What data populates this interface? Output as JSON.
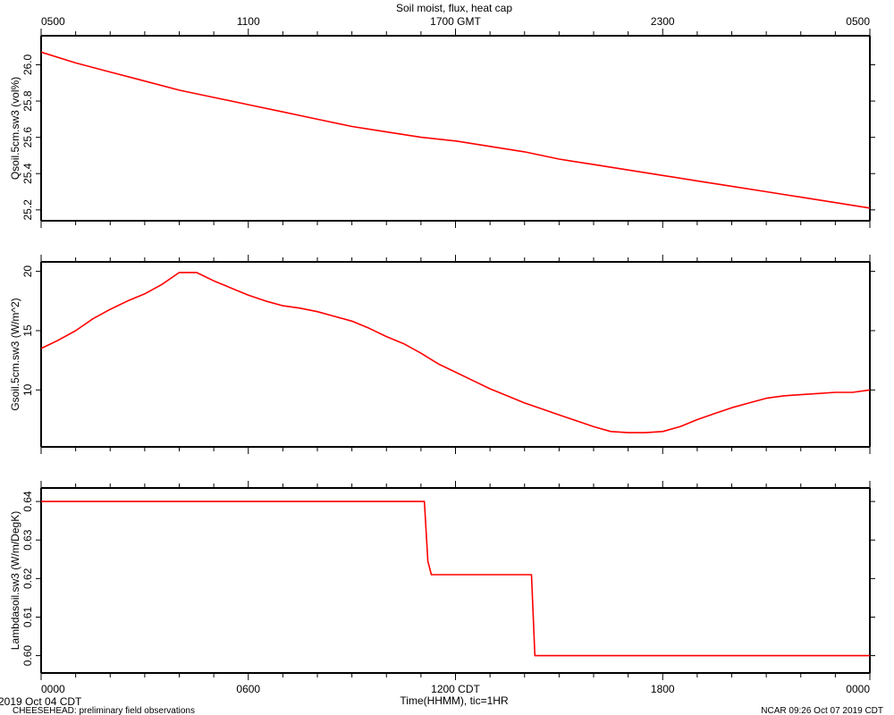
{
  "chart_data": {
    "title": "Soil moist, flux, heat cap",
    "top_axis_labels": [
      "0500",
      "1100",
      "1700 GMT",
      "2300",
      "0500"
    ],
    "bottom_axis_labels": [
      "0000",
      "0600",
      "1200 CDT",
      "1800",
      "0000"
    ],
    "xlabel": "Time(HHMM), tic=1HR",
    "date_label": "2019 Oct 04 CDT",
    "footer_left": "CHEESEHEAD: preliminary field observations",
    "footer_right": "NCAR 09:26 Oct 07 2019 CDT",
    "x_range_hours": [
      0,
      24
    ],
    "line_color": "#ff0000",
    "panels": [
      {
        "type": "line",
        "ylabel": "Qsoil.5cm.sw3 (vol%)",
        "ylim": [
          25.14,
          26.16
        ],
        "ytick_values": [
          25.2,
          25.4,
          25.6,
          25.8,
          26.0
        ],
        "ytick_labels": [
          "25.2",
          "25.4",
          "25.6",
          "25.8",
          "26.0"
        ],
        "series": [
          {
            "x": [
              0,
              1,
              2,
              3,
              4,
              5,
              6,
              7,
              8,
              9,
              10,
              11,
              12,
              13,
              14,
              15,
              16,
              17,
              18,
              19,
              20,
              21,
              22,
              23,
              24
            ],
            "y": [
              26.07,
              26.01,
              25.96,
              25.91,
              25.86,
              25.82,
              25.78,
              25.74,
              25.7,
              25.66,
              25.63,
              25.6,
              25.58,
              25.55,
              25.52,
              25.48,
              25.45,
              25.42,
              25.39,
              25.36,
              25.33,
              25.3,
              25.27,
              25.24,
              25.21
            ]
          }
        ]
      },
      {
        "type": "line",
        "ylabel": "Gsoil.5cm.sw3 (W/m^2)",
        "ylim": [
          5.2,
          20.8
        ],
        "ytick_values": [
          10,
          15,
          20
        ],
        "ytick_labels": [
          "10",
          "15",
          "20"
        ],
        "series": [
          {
            "x": [
              0,
              0.5,
              1,
              1.5,
              2,
              2.5,
              3,
              3.5,
              4,
              4.5,
              5,
              5.5,
              6,
              6.5,
              7,
              7.5,
              8,
              8.5,
              9,
              9.5,
              10,
              10.5,
              11,
              11.5,
              12,
              12.5,
              13,
              13.5,
              14,
              14.5,
              15,
              15.5,
              16,
              16.5,
              17,
              17.5,
              18,
              18.5,
              19,
              19.5,
              20,
              20.5,
              21,
              21.5,
              22,
              22.5,
              23,
              23.5,
              24
            ],
            "y": [
              13.5,
              14.2,
              15.0,
              16.0,
              16.8,
              17.5,
              18.1,
              18.9,
              19.9,
              19.9,
              19.2,
              18.6,
              18.0,
              17.5,
              17.1,
              16.9,
              16.6,
              16.2,
              15.8,
              15.2,
              14.5,
              13.9,
              13.1,
              12.2,
              11.5,
              10.8,
              10.1,
              9.5,
              8.9,
              8.4,
              7.9,
              7.4,
              6.9,
              6.5,
              6.4,
              6.4,
              6.5,
              6.9,
              7.5,
              8.0,
              8.5,
              8.9,
              9.3,
              9.5,
              9.6,
              9.7,
              9.8,
              9.8,
              10.0
            ]
          }
        ]
      },
      {
        "type": "line",
        "ylabel": "Lambdasoil.sw3 (W/m/DegK)",
        "ylim": [
          0.5955,
          0.6435
        ],
        "ytick_values": [
          0.6,
          0.61,
          0.62,
          0.63,
          0.64
        ],
        "ytick_labels": [
          "0.60",
          "0.61",
          "0.62",
          "0.63",
          "0.64"
        ],
        "series": [
          {
            "x": [
              0,
              11.1,
              11.2,
              11.3,
              14.2,
              14.3,
              24
            ],
            "y": [
              0.64,
              0.64,
              0.6245,
              0.621,
              0.621,
              0.6,
              0.6
            ]
          }
        ]
      }
    ]
  }
}
